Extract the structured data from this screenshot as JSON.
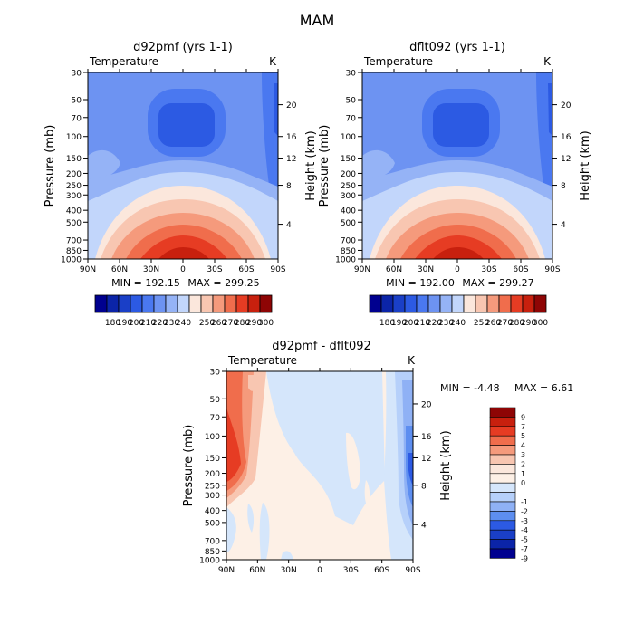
{
  "figure_title": "MAM",
  "chart_data": [
    {
      "type": "heatmap",
      "id": "p1",
      "title": "d92pmf (yrs 1-1)",
      "variable": "Temperature",
      "units": "K",
      "ylabel": "Pressure (mb)",
      "y2label": "Height (km)",
      "x_ticks": [
        "90N",
        "60N",
        "30N",
        "0",
        "30S",
        "60S",
        "90S"
      ],
      "y_ticks": [
        "30",
        "50",
        "70",
        "100",
        "150",
        "200",
        "250",
        "300",
        "400",
        "500",
        "700",
        "850",
        "1000"
      ],
      "y2_ticks": [
        "20",
        "16",
        "12",
        "8",
        "4"
      ],
      "min_label": "MIN = 192.15",
      "max_label": "MAX = 299.25",
      "min_value": 192.15,
      "max_value": 299.25,
      "colorbar_labels": [
        "180",
        "190",
        "200",
        "210",
        "220",
        "230",
        "240",
        "250",
        "260",
        "270",
        "280",
        "290",
        "300"
      ],
      "colorbar_colors": [
        "#00008f",
        "#0b24a8",
        "#1a3fc7",
        "#2c5ae3",
        "#4a78f0",
        "#6d93f2",
        "#95b3f6",
        "#c2d6fb",
        "#fbe7dc",
        "#f8c6b1",
        "#f59a7c",
        "#f06d4c",
        "#e63c23",
        "#c8200e",
        "#8e0505"
      ]
    },
    {
      "type": "heatmap",
      "id": "p2",
      "title": "dflt092 (yrs 1-1)",
      "variable": "Temperature",
      "units": "K",
      "ylabel": "Pressure (mb)",
      "y2label": "Height (km)",
      "x_ticks": [
        "90N",
        "60N",
        "30N",
        "0",
        "30S",
        "60S",
        "90S"
      ],
      "y_ticks": [
        "30",
        "50",
        "70",
        "100",
        "150",
        "200",
        "250",
        "300",
        "400",
        "500",
        "700",
        "850",
        "1000"
      ],
      "y2_ticks": [
        "20",
        "16",
        "12",
        "8",
        "4"
      ],
      "min_label": "MIN = 192.00",
      "max_label": "MAX = 299.27",
      "min_value": 192.0,
      "max_value": 299.27,
      "colorbar_labels": [
        "180",
        "190",
        "200",
        "210",
        "220",
        "230",
        "240",
        "250",
        "260",
        "270",
        "280",
        "290",
        "300"
      ],
      "colorbar_colors": [
        "#00008f",
        "#0b24a8",
        "#1a3fc7",
        "#2c5ae3",
        "#4a78f0",
        "#6d93f2",
        "#95b3f6",
        "#c2d6fb",
        "#fbe7dc",
        "#f8c6b1",
        "#f59a7c",
        "#f06d4c",
        "#e63c23",
        "#c8200e",
        "#8e0505"
      ]
    },
    {
      "type": "heatmap",
      "id": "p3",
      "title": "d92pmf - dflt092",
      "variable": "Temperature",
      "units": "K",
      "ylabel": "Pressure (mb)",
      "y2label": "Height (km)",
      "x_ticks": [
        "90N",
        "60N",
        "30N",
        "0",
        "30S",
        "60S",
        "90S"
      ],
      "y_ticks": [
        "30",
        "50",
        "70",
        "100",
        "150",
        "200",
        "250",
        "300",
        "400",
        "500",
        "700",
        "850",
        "1000"
      ],
      "y2_ticks": [
        "20",
        "16",
        "12",
        "8",
        "4"
      ],
      "min_label": "MIN =  -4.48",
      "max_label": "MAX =   6.61",
      "min_value": -4.48,
      "max_value": 6.61,
      "colorbar_labels": [
        "9",
        "7",
        "5",
        "4",
        "3",
        "2",
        "1",
        "0",
        "-1",
        "-2",
        "-3",
        "-4",
        "-5",
        "-7",
        "-9"
      ],
      "colorbar_colors": [
        "#8e0505",
        "#c8200e",
        "#e63c23",
        "#f06d4c",
        "#f59a7c",
        "#f8c6b1",
        "#fbe7dc",
        "#fdf0e6",
        "#d5e6fb",
        "#b6d0fa",
        "#8fb1f5",
        "#5d8ef0",
        "#2c5ae3",
        "#1a3fc7",
        "#0b24a8",
        "#00008f"
      ]
    }
  ]
}
